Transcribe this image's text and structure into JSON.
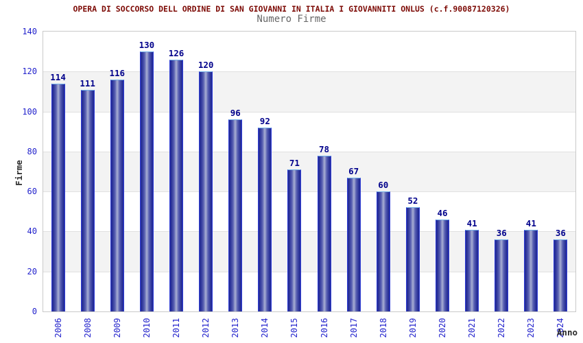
{
  "chart_data": {
    "type": "bar",
    "title": "OPERA DI SOCCORSO DELL ORDINE DI SAN GIOVANNI IN ITALIA I GIOVANNITI ONLUS (c.f.90087120326)",
    "subtitle": "Numero Firme",
    "xlabel": "Anno",
    "ylabel": "Firme",
    "categories": [
      "2006",
      "2008",
      "2009",
      "2010",
      "2011",
      "2012",
      "2013",
      "2014",
      "2015",
      "2016",
      "2017",
      "2018",
      "2019",
      "2020",
      "2021",
      "2022",
      "2023",
      "2024"
    ],
    "values": [
      114,
      111,
      116,
      130,
      126,
      120,
      96,
      92,
      71,
      78,
      67,
      60,
      52,
      46,
      41,
      36,
      41,
      36
    ],
    "ylim": [
      0,
      140
    ],
    "yticks": [
      0,
      20,
      40,
      60,
      80,
      100,
      120,
      140
    ],
    "grid": true,
    "legend": "none",
    "layout": {
      "alternating_horizontal_bands": true,
      "x_tick_rotation_deg": 90
    },
    "colors": {
      "title": "#7d0b06",
      "subtitle": "#666666",
      "axis_label": "#2b2b2b",
      "tick_label": "#2222cc",
      "value_label": "#00008b",
      "bar_edge": "#232a94",
      "bar_center": "#a9afd3",
      "bar_border_side": "#2e3cd6",
      "bar_border_top": "#74b0e8",
      "band_fill": "#f3f3f3",
      "gridline": "#e0e0e0",
      "plot_border": "#c9c9c9",
      "background": "#ffffff"
    }
  }
}
